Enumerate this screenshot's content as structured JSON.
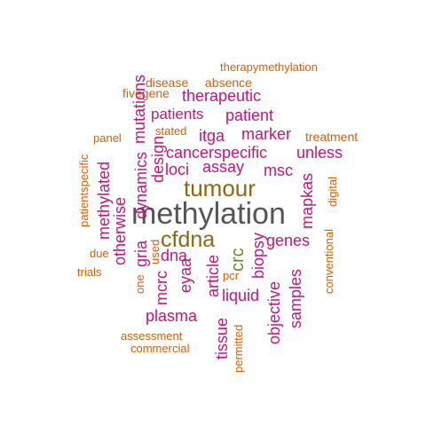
{
  "words": [
    {
      "text": "methylation",
      "color": "#555555"
    },
    {
      "text": "tumour",
      "color": "#8B6914"
    },
    {
      "text": "cfdna",
      "color": "#8B6914"
    },
    {
      "text": "crc",
      "color": "#6E8B1A"
    },
    {
      "text": "therapymethylation",
      "color": "#D2610A"
    },
    {
      "text": "disease",
      "color": "#D2610A"
    },
    {
      "text": "absence",
      "color": "#D2610A"
    },
    {
      "text": "fivegene",
      "color": "#D2610A"
    },
    {
      "text": "therapeutic",
      "color": "#C2177A"
    },
    {
      "text": "patients",
      "color": "#C2177A"
    },
    {
      "text": "patient",
      "color": "#C2177A"
    },
    {
      "text": "mutations",
      "color": "#C2177A"
    },
    {
      "text": "stated",
      "color": "#D2610A"
    },
    {
      "text": "panel",
      "color": "#D2610A"
    },
    {
      "text": "itga",
      "color": "#C2177A"
    },
    {
      "text": "marker",
      "color": "#C2177A"
    },
    {
      "text": "treatment",
      "color": "#D2610A"
    },
    {
      "text": "patientspecific",
      "color": "#D2610A"
    },
    {
      "text": "design",
      "color": "#C2177A"
    },
    {
      "text": "dynamics",
      "color": "#C2177A"
    },
    {
      "text": "cancerspecific",
      "color": "#C2177A"
    },
    {
      "text": "unless",
      "color": "#C2177A"
    },
    {
      "text": "loci",
      "color": "#C2177A"
    },
    {
      "text": "assay",
      "color": "#C2177A"
    },
    {
      "text": "msc",
      "color": "#C2177A"
    },
    {
      "text": "methylated",
      "color": "#C2177A"
    },
    {
      "text": "digital",
      "color": "#D2610A"
    },
    {
      "text": "mapkas",
      "color": "#C2177A"
    },
    {
      "text": "otherwise",
      "color": "#C2177A"
    },
    {
      "text": "genes",
      "color": "#C2177A"
    },
    {
      "text": "gria",
      "color": "#C2177A"
    },
    {
      "text": "used",
      "color": "#D2610A"
    },
    {
      "text": "one",
      "color": "#D2610A"
    },
    {
      "text": "dna",
      "color": "#C2177A"
    },
    {
      "text": "due",
      "color": "#D2610A"
    },
    {
      "text": "trials",
      "color": "#D2610A"
    },
    {
      "text": "biopsy",
      "color": "#C2177A"
    },
    {
      "text": "article",
      "color": "#C2177A"
    },
    {
      "text": "eyaa",
      "color": "#C2177A"
    },
    {
      "text": "mcrc",
      "color": "#C2177A"
    },
    {
      "text": "conventional",
      "color": "#D2610A"
    },
    {
      "text": "objective",
      "color": "#C2177A"
    },
    {
      "text": "samples",
      "color": "#C2177A"
    },
    {
      "text": "liquid",
      "color": "#C2177A"
    },
    {
      "text": "pcr",
      "color": "#D2610A"
    },
    {
      "text": "plasma",
      "color": "#C2177A"
    },
    {
      "text": "assessment",
      "color": "#D2610A"
    },
    {
      "text": "tissue",
      "color": "#C2177A"
    },
    {
      "text": "commercial",
      "color": "#D2610A"
    },
    {
      "text": "permitted",
      "color": "#D2610A"
    }
  ]
}
